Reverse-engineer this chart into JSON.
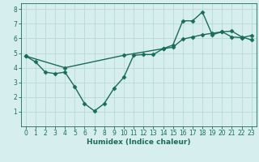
{
  "xlabel": "Humidex (Indice chaleur)",
  "ylabel": "",
  "xlim": [
    -0.5,
    23.5
  ],
  "ylim": [
    0,
    8.4
  ],
  "xticks": [
    0,
    1,
    2,
    3,
    4,
    5,
    6,
    7,
    8,
    9,
    10,
    11,
    12,
    13,
    14,
    15,
    16,
    17,
    18,
    19,
    20,
    21,
    22,
    23
  ],
  "yticks": [
    1,
    2,
    3,
    4,
    5,
    6,
    7,
    8
  ],
  "bg_color": "#d6eeee",
  "grid_color": "#b8d8d8",
  "line_color": "#1a6b5a",
  "line1_x": [
    0,
    1,
    2,
    3,
    4,
    5,
    6,
    7,
    8,
    9,
    10,
    11,
    12,
    13,
    14,
    15,
    16,
    17,
    18,
    19,
    20,
    21,
    22,
    23
  ],
  "line1_y": [
    4.8,
    4.4,
    3.7,
    3.6,
    3.7,
    2.7,
    1.55,
    1.05,
    1.55,
    2.6,
    3.35,
    4.85,
    4.9,
    4.9,
    5.3,
    5.55,
    7.2,
    7.2,
    7.8,
    6.25,
    6.45,
    6.5,
    6.1,
    5.9
  ],
  "line2_x": [
    0,
    4,
    10,
    14,
    15,
    16,
    17,
    18,
    19,
    20,
    21,
    22,
    23
  ],
  "line2_y": [
    4.8,
    4.0,
    4.85,
    5.3,
    5.4,
    5.95,
    6.1,
    6.25,
    6.35,
    6.45,
    6.1,
    6.05,
    6.2
  ],
  "marker": "D",
  "marker_size": 2.5,
  "line_width": 1.0,
  "axis_fontsize": 6.5,
  "tick_fontsize": 5.5
}
